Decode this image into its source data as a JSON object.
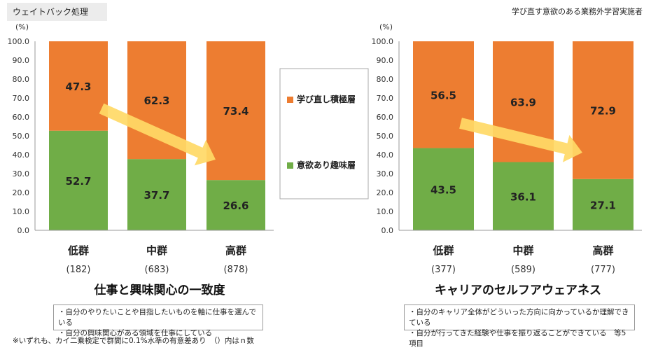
{
  "header": {
    "badge": "ウェイトバック処理",
    "note": "学び直す意欲のある業務外学習実施者"
  },
  "legend": {
    "items": [
      {
        "label": "学び直し積極層",
        "color": "#ED7D31"
      },
      {
        "label": "意欲あり趣味層",
        "color": "#70AD47"
      }
    ]
  },
  "chart_data": [
    {
      "type": "bar",
      "stacked": true,
      "title": "仕事と興味関心の一致度",
      "ylabel": "(%)",
      "ylim": [
        0,
        100
      ],
      "yticks": [
        "100.0",
        "90.0",
        "80.0",
        "70.0",
        "60.0",
        "50.0",
        "40.0",
        "30.0",
        "20.0",
        "10.0",
        "0.0"
      ],
      "categories": [
        "低群",
        "中群",
        "高群"
      ],
      "n_labels": [
        "(182)",
        "(683)",
        "(878)"
      ],
      "series": [
        {
          "name": "意欲あり趣味層",
          "values": [
            52.7,
            37.7,
            26.6
          ],
          "color": "#70AD47"
        },
        {
          "name": "学び直し積極層",
          "values": [
            47.3,
            62.3,
            73.4
          ],
          "color": "#ED7D31"
        }
      ],
      "notes": [
        "・自分のやりたいことや目指したいものを軸に仕事を選んでいる",
        "・自分の興味関心がある領域を仕事にしている"
      ]
    },
    {
      "type": "bar",
      "stacked": true,
      "title": "キャリアのセルフアウェアネス",
      "ylabel": "(%)",
      "ylim": [
        0,
        100
      ],
      "yticks": [
        "100.0",
        "90.0",
        "80.0",
        "70.0",
        "60.0",
        "50.0",
        "40.0",
        "30.0",
        "20.0",
        "10.0",
        "0.0"
      ],
      "categories": [
        "低群",
        "中群",
        "高群"
      ],
      "n_labels": [
        "(377)",
        "(589)",
        "(777)"
      ],
      "series": [
        {
          "name": "意欲あり趣味層",
          "values": [
            43.5,
            36.1,
            27.1
          ],
          "color": "#70AD47"
        },
        {
          "name": "学び直し積極層",
          "values": [
            56.5,
            63.9,
            72.9
          ],
          "color": "#ED7D31"
        }
      ],
      "notes": [
        "・自分のキャリア全体がどういった方向に向かっているか理解できている",
        "・自分が行ってきた経験や仕事を振り返ることができている　等5項目"
      ]
    }
  ],
  "footnote": "※いずれも、カイ二乗検定で群間に0.1%水準の有意差あり　（）内はｎ数"
}
